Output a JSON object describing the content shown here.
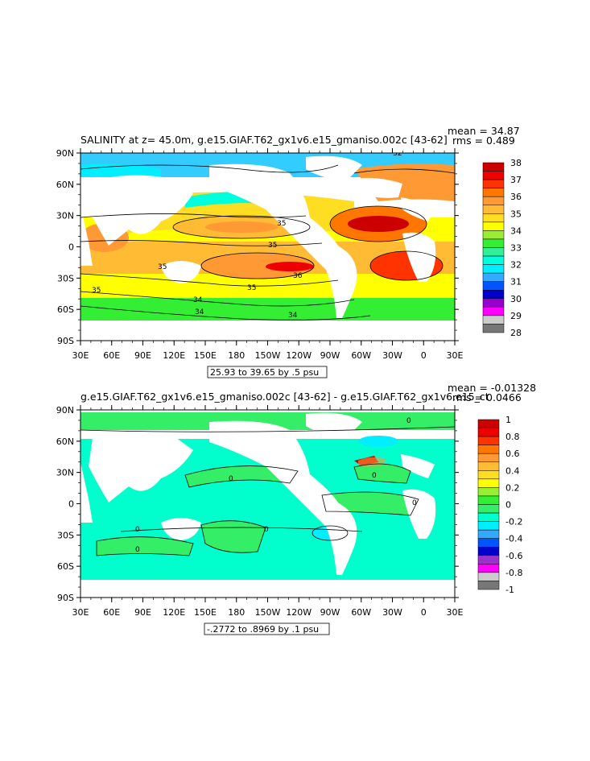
{
  "panels": [
    {
      "title": "SALINITY at z=  45.0m, g.e15.GIAF.T62_gx1v6.e15_gmaniso.002c [43-62]",
      "mean_label": "mean = 34.87",
      "rms_label": "rms = 0.489",
      "range_label": "25.93 to 39.65 by .5 psu",
      "lat_labels": [
        "90N",
        "60N",
        "30N",
        "0",
        "30S",
        "60S",
        "90S"
      ],
      "lon_labels": [
        "30E",
        "60E",
        "90E",
        "120E",
        "150E",
        "180",
        "150W",
        "120W",
        "90W",
        "60W",
        "30W",
        "0",
        "30E"
      ],
      "colorbar": {
        "labels": [
          "38",
          "37",
          "36",
          "35",
          "34",
          "33",
          "32",
          "31",
          "30",
          "29",
          "28"
        ],
        "colors": [
          "#cc0000",
          "#ee0000",
          "#ff3300",
          "#ff7700",
          "#ff9933",
          "#ffbb33",
          "#ffdd22",
          "#ffff00",
          "#99ee33",
          "#33ee33",
          "#33ee99",
          "#00ffdd",
          "#00eeff",
          "#33aaff",
          "#0055ff",
          "#0000cc",
          "#9900cc",
          "#ff00ff",
          "#cccccc",
          "#777777"
        ]
      },
      "contour_labels": [
        "35",
        "35",
        "35",
        "36",
        "35",
        "34",
        "34",
        "34",
        "35",
        "32"
      ]
    },
    {
      "title": "g.e15.GIAF.T62_gx1v6.e15_gmaniso.002c [43-62] - g.e15.GIAF.T62_gx1v6.e15_ct",
      "mean_label": "mean = -0.01328",
      "rms_label": "rms = 0.0466",
      "range_label": "-.2772 to .8969 by .1 psu",
      "lat_labels": [
        "90N",
        "60N",
        "30N",
        "0",
        "30S",
        "60S",
        "90S"
      ],
      "lon_labels": [
        "30E",
        "60E",
        "90E",
        "120E",
        "150E",
        "180",
        "150W",
        "120W",
        "90W",
        "60W",
        "30W",
        "0",
        "30E"
      ],
      "colorbar": {
        "labels": [
          "1",
          "0.8",
          "0.6",
          "0.4",
          "0.2",
          "0",
          "-0.2",
          "-0.4",
          "-0.6",
          "-0.8",
          "-1"
        ],
        "colors": [
          "#cc0000",
          "#ee0000",
          "#ff3300",
          "#ff7700",
          "#ff9933",
          "#ffbb33",
          "#ffdd22",
          "#ffff00",
          "#99ee33",
          "#33ee33",
          "#33ee66",
          "#00ffcc",
          "#00eeff",
          "#33aaff",
          "#0055ff",
          "#0000cc",
          "#9933cc",
          "#ff00ff",
          "#cccccc",
          "#777777"
        ]
      },
      "contour_labels": [
        "0",
        "0",
        "0",
        "0",
        "0",
        "0",
        "0"
      ]
    }
  ]
}
